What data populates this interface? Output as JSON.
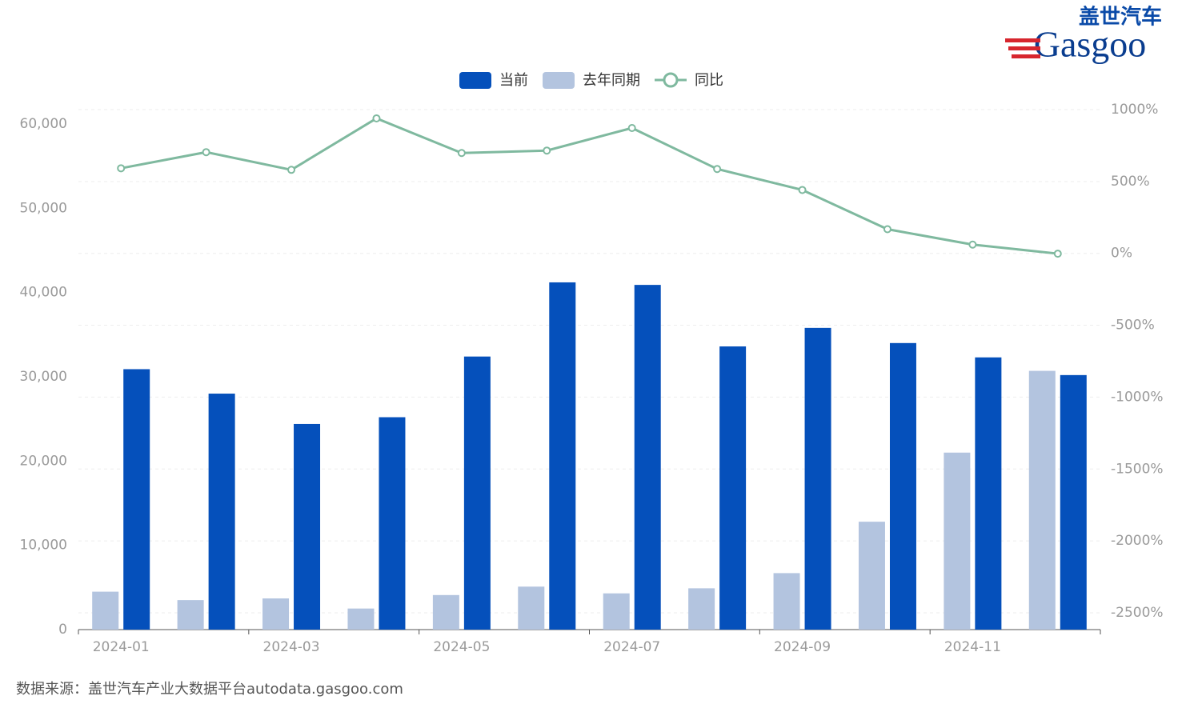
{
  "logo": {
    "cn": "盖世汽车",
    "en": "Gasgoo"
  },
  "source": "数据来源：盖世汽车产业大数据平台autodata.gasgoo.com",
  "chart_data": {
    "type": "bar-line",
    "categories": [
      "2024-01",
      null,
      "2024-03",
      null,
      "2024-05",
      null,
      "2024-07",
      null,
      "2024-09",
      null,
      "2024-11",
      null
    ],
    "series": [
      {
        "name": "当前",
        "color": "#0550bb",
        "type": "bar",
        "values": [
          30900,
          28000,
          24400,
          25200,
          32400,
          41200,
          40900,
          33600,
          35800,
          34000,
          32300,
          30200
        ]
      },
      {
        "name": "去年同期",
        "color": "#b3c4df",
        "type": "bar",
        "values": [
          4500,
          3500,
          3700,
          2500,
          4100,
          5100,
          4300,
          4900,
          6700,
          12800,
          21000,
          30700
        ]
      },
      {
        "name": "同比",
        "color": "#7fb99f",
        "type": "line",
        "axis": "y2",
        "values": [
          592,
          704,
          581,
          939,
          698,
          715,
          872,
          587,
          441,
          168,
          61,
          -2
        ]
      }
    ],
    "ylim": [
      0,
      61700
    ],
    "yticks": [
      0,
      {
        "value": 10000,
        "label": "10,000"
      },
      {
        "value": 20000,
        "label": "20,000"
      },
      {
        "value": 30000,
        "label": "30,000"
      },
      {
        "value": 40000,
        "label": "40,000"
      },
      {
        "value": 50000,
        "label": "50,000"
      },
      {
        "value": 60000,
        "label": "60,000"
      }
    ],
    "y2lim": [
      -2617,
      1000
    ],
    "y2ticks": [
      {
        "value": 1000,
        "label": "1000%"
      },
      {
        "value": 500,
        "label": "500%"
      },
      {
        "value": 0,
        "label": "0%"
      },
      {
        "value": -500,
        "label": "-500%"
      },
      {
        "value": -1000,
        "label": "-1000%"
      },
      {
        "value": -1500,
        "label": "-1500%"
      },
      {
        "value": -2000,
        "label": "-2000%"
      },
      {
        "value": -2500,
        "label": "-2500%"
      }
    ],
    "grid": true,
    "legend": "top"
  }
}
